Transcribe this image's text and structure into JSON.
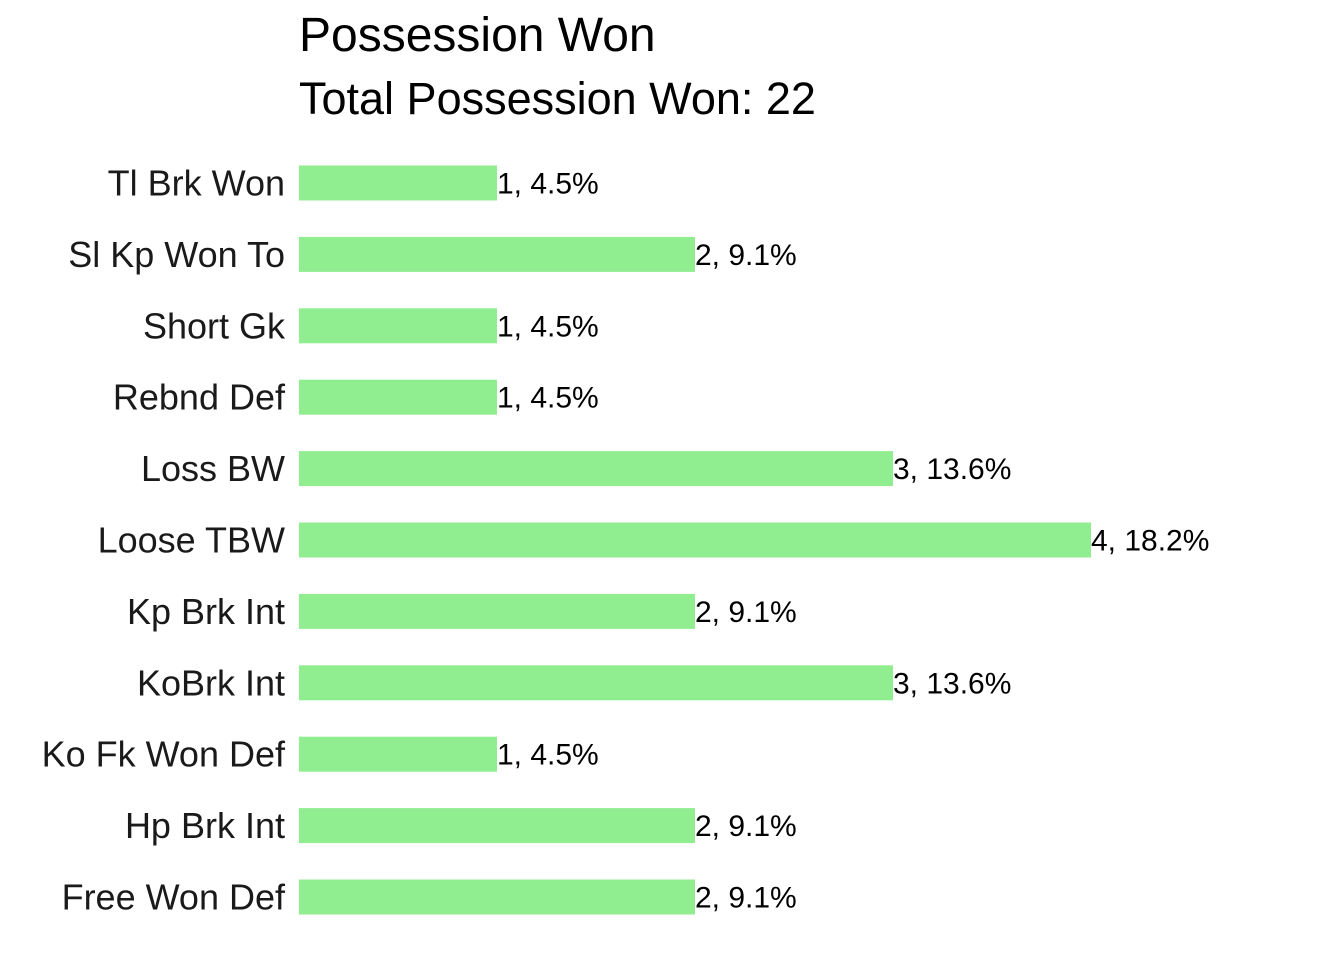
{
  "chart_data": {
    "type": "bar",
    "orientation": "horizontal",
    "title": "Possession Won",
    "subtitle": "Total Possession Won: 22",
    "categories": [
      "Tl Brk Won",
      "Sl Kp Won To",
      "Short Gk",
      "Rebnd Def",
      "Loss BW",
      "Loose TBW",
      "Kp Brk Int",
      "KoBrk Int",
      "Ko Fk Won Def",
      "Hp Brk Int",
      "Free Won Def"
    ],
    "values": [
      1,
      2,
      1,
      1,
      3,
      4,
      2,
      3,
      1,
      2,
      2
    ],
    "data_labels": [
      "1, 4.5%",
      "2, 9.1%",
      "1, 4.5%",
      "1, 4.5%",
      "3, 13.6%",
      "4, 18.2%",
      "2, 9.1%",
      "3, 13.6%",
      "1, 4.5%",
      "2, 9.1%",
      "2, 9.1%"
    ],
    "xlim": [
      0,
      4
    ],
    "grid": false,
    "legend": "none",
    "bar_color": "#90ee90"
  }
}
